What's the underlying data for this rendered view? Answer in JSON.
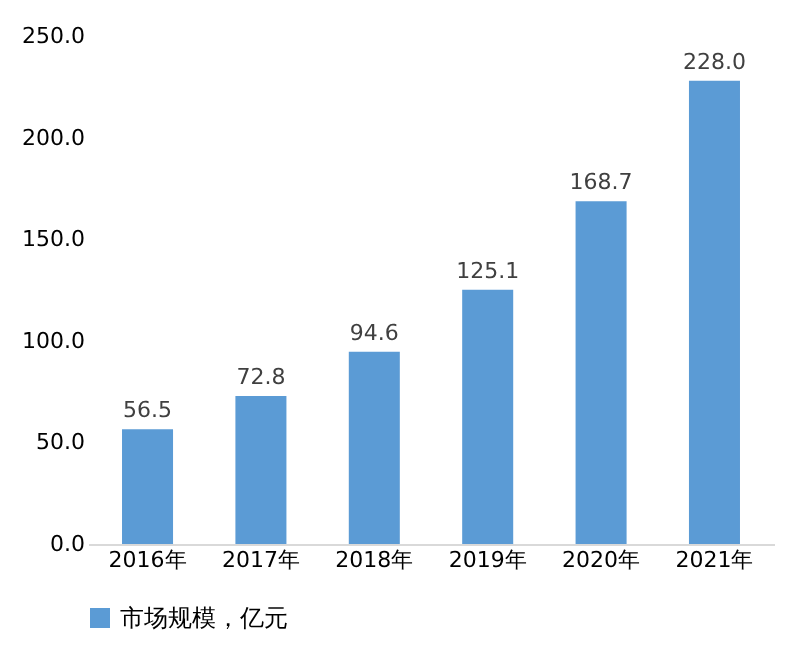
{
  "chart_data": {
    "type": "bar",
    "categories": [
      "2016年",
      "2017年",
      "2018年",
      "2019年",
      "2020年",
      "2021年"
    ],
    "series": [
      {
        "name": "市场规模，亿元",
        "color": "#5b9bd5",
        "values": [
          56.5,
          72.8,
          94.6,
          125.1,
          168.7,
          228.0
        ],
        "value_labels": [
          "56.5",
          "72.8",
          "94.6",
          "125.1",
          "168.7",
          "228.0"
        ]
      }
    ],
    "ylim": [
      0,
      250
    ],
    "yticks": [
      {
        "value": 0,
        "label": "0.0"
      },
      {
        "value": 50,
        "label": "50.0"
      },
      {
        "value": 100,
        "label": "100.0"
      },
      {
        "value": 150,
        "label": "150.0"
      },
      {
        "value": 200,
        "label": "200.0"
      },
      {
        "value": 250,
        "label": "250.0"
      }
    ],
    "grid": false,
    "legend": "bottom"
  }
}
